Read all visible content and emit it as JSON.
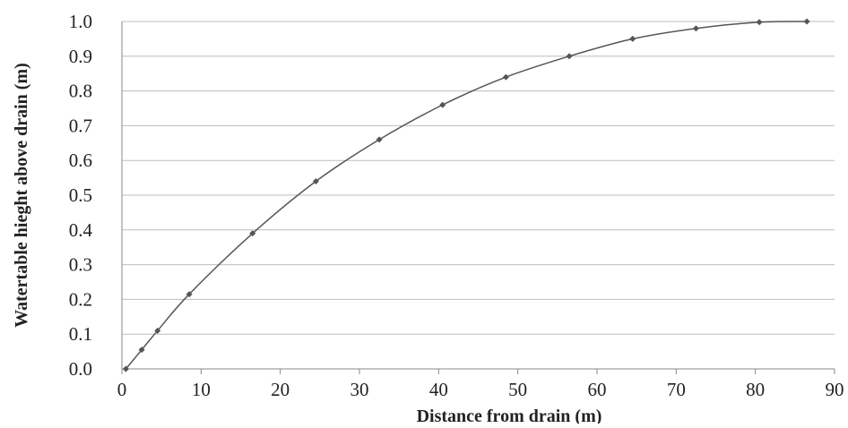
{
  "chart_data": {
    "type": "line",
    "title": "",
    "xlabel": "Distance from drain (m)",
    "ylabel": "Watertable hieght above drain (m)",
    "xlim": [
      0,
      90
    ],
    "ylim": [
      0.0,
      1.0
    ],
    "x_ticks": [
      "0",
      "10",
      "20",
      "30",
      "40",
      "50",
      "60",
      "70",
      "80",
      "90"
    ],
    "y_ticks": [
      "0.0",
      "0.1",
      "0.2",
      "0.3",
      "0.4",
      "0.5",
      "0.6",
      "0.7",
      "0.8",
      "0.9",
      "1.0"
    ],
    "grid": "horizontal",
    "legend": "none",
    "colors": {
      "line": "#555555",
      "marker": "#555555",
      "grid": "#bdbdbd",
      "axis": "#888888"
    },
    "series": [
      {
        "marker": "diamond",
        "points": [
          {
            "x": 0.5,
            "y": 0.0
          },
          {
            "x": 2.5,
            "y": 0.055
          },
          {
            "x": 4.5,
            "y": 0.11
          },
          {
            "x": 8.5,
            "y": 0.215
          },
          {
            "x": 16.5,
            "y": 0.39
          },
          {
            "x": 24.5,
            "y": 0.54
          },
          {
            "x": 32.5,
            "y": 0.66
          },
          {
            "x": 40.5,
            "y": 0.76
          },
          {
            "x": 48.5,
            "y": 0.84
          },
          {
            "x": 56.5,
            "y": 0.9
          },
          {
            "x": 64.5,
            "y": 0.95
          },
          {
            "x": 72.5,
            "y": 0.98
          },
          {
            "x": 80.5,
            "y": 0.998
          },
          {
            "x": 86.5,
            "y": 1.0
          }
        ]
      }
    ]
  }
}
